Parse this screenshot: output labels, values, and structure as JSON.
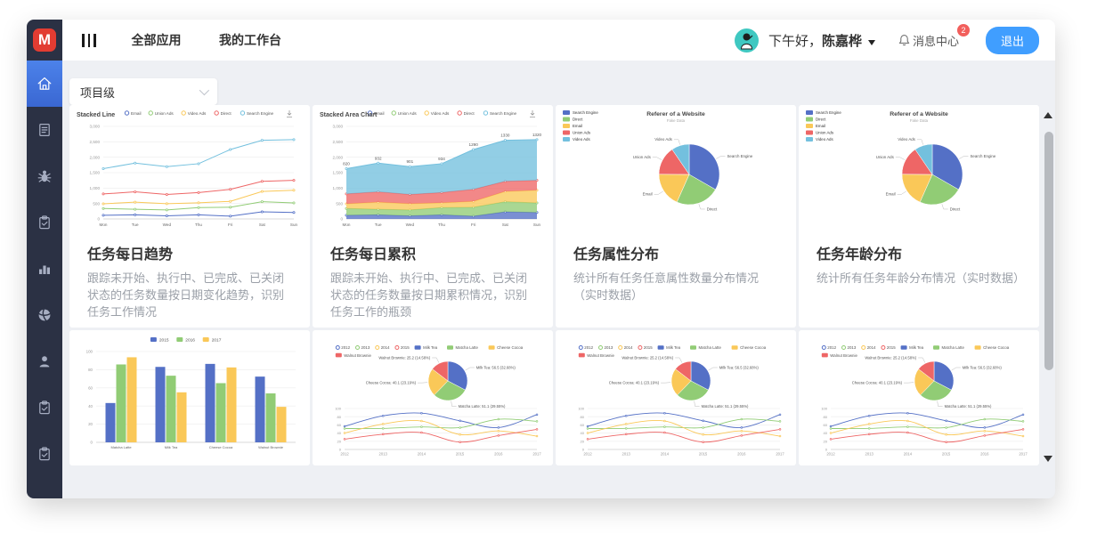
{
  "header": {
    "logo_letter": "M",
    "nav": [
      {
        "label": "全部应用"
      },
      {
        "label": "我的工作台"
      }
    ],
    "greeting_prefix": "下午好，",
    "user_name": "陈嘉桦",
    "message_center_label": "消息中心",
    "message_badge_count": "2",
    "logout_label": "退出"
  },
  "sidebar": {
    "items": [
      {
        "icon": "home-icon",
        "active": true
      },
      {
        "icon": "document-icon",
        "active": false
      },
      {
        "icon": "bug-icon",
        "active": false
      },
      {
        "icon": "clipboard-check-icon",
        "active": false
      },
      {
        "icon": "bar-chart-icon",
        "active": false
      },
      {
        "icon": "globe-icon",
        "active": false
      },
      {
        "icon": "user-icon",
        "active": false
      },
      {
        "icon": "clipboard-check-icon",
        "active": false
      },
      {
        "icon": "clipboard-check-icon",
        "active": false
      }
    ]
  },
  "filter": {
    "value": "项目级"
  },
  "colors": {
    "accent_blue": "#409eff",
    "sidebar_bg": "#2b3144",
    "active_item_blue": "#3f6fd6",
    "logo_red": "#e23c32",
    "avatar_teal": "#3fc8c1",
    "badge_red": "#f25f5c",
    "palette": [
      "#5470c6",
      "#91cc75",
      "#fac858",
      "#ee6666",
      "#73c0de"
    ]
  },
  "cards": [
    {
      "title": "任务每日趋势",
      "desc": "跟踪未开始、执行中、已完成、已关闭状态的任务数量按日期变化趋势，识别任务工作情况",
      "chart": {
        "type": "stacked-line",
        "title": "Stacked Line",
        "categories": [
          "Mon",
          "Tue",
          "Wed",
          "Thu",
          "Fri",
          "Sat",
          "Sun"
        ],
        "ymax": 3000,
        "ystep": 500,
        "series": [
          {
            "name": "Email",
            "color": "#5470c6",
            "values": [
              120,
              132,
              101,
              134,
              90,
              230,
              210
            ]
          },
          {
            "name": "Union Ads",
            "color": "#91cc75",
            "values": [
              220,
              182,
              191,
              234,
              290,
              330,
              310
            ]
          },
          {
            "name": "Video Ads",
            "color": "#fac858",
            "values": [
              150,
              232,
              201,
              154,
              190,
              330,
              410
            ]
          },
          {
            "name": "Direct",
            "color": "#ee6666",
            "values": [
              320,
              332,
              301,
              334,
              390,
              330,
              320
            ]
          },
          {
            "name": "Search Engine",
            "color": "#73c0de",
            "values": [
              820,
              932,
              901,
              934,
              1290,
              1330,
              1320
            ]
          }
        ]
      }
    },
    {
      "title": "任务每日累积",
      "desc": "跟踪未开始、执行中、已完成、已关闭状态的任务数量按日期累积情况，识别任务工作的瓶颈",
      "chart": {
        "type": "stacked-area",
        "title": "Stacked Area Chart",
        "categories": [
          "Mon",
          "Tue",
          "Wed",
          "Thu",
          "Fri",
          "Sat",
          "Sun"
        ],
        "ymax": 3000,
        "ystep": 500,
        "series": [
          {
            "name": "Email",
            "color": "#5470c6",
            "values": [
              120,
              132,
              101,
              134,
              90,
              230,
              210
            ]
          },
          {
            "name": "Union Ads",
            "color": "#91cc75",
            "values": [
              220,
              182,
              191,
              234,
              290,
              330,
              310
            ]
          },
          {
            "name": "Video Ads",
            "color": "#fac858",
            "values": [
              150,
              232,
              201,
              154,
              190,
              330,
              410
            ]
          },
          {
            "name": "Direct",
            "color": "#ee6666",
            "values": [
              320,
              332,
              301,
              334,
              390,
              330,
              320
            ]
          },
          {
            "name": "Search Engine",
            "color": "#73c0de",
            "values": [
              820,
              932,
              901,
              934,
              1290,
              1330,
              1320
            ]
          }
        ]
      }
    },
    {
      "title": "任务属性分布",
      "desc": "统计所有任务任意属性数量分布情况（实时数据）",
      "chart": {
        "type": "pie",
        "title": "Referer of a Website",
        "subtitle": "Fake Data",
        "slices": [
          {
            "name": "Search Engine",
            "color": "#5470c6",
            "value": 1048
          },
          {
            "name": "Direct",
            "color": "#91cc75",
            "value": 735
          },
          {
            "name": "Email",
            "color": "#fac858",
            "value": 580
          },
          {
            "name": "Union Ads",
            "color": "#ee6666",
            "value": 484
          },
          {
            "name": "Video Ads",
            "color": "#73c0de",
            "value": 300
          }
        ]
      }
    },
    {
      "title": "任务年龄分布",
      "desc": "统计所有任务年龄分布情况（实时数据）",
      "chart": {
        "ref": 2
      }
    },
    {
      "chart": {
        "type": "bar",
        "categories": [
          "Matcha Latte",
          "Milk Tea",
          "Cheese Cocoa",
          "Walnut Brownie"
        ],
        "ymax": 100,
        "ystep": 20,
        "series": [
          {
            "name": "2015",
            "color": "#5470c6",
            "values": [
              43.3,
              83.1,
              86.4,
              72.4
            ]
          },
          {
            "name": "2016",
            "color": "#91cc75",
            "values": [
              85.8,
              73.4,
              65.2,
              53.9
            ]
          },
          {
            "name": "2017",
            "color": "#fac858",
            "values": [
              93.7,
              55.1,
              82.5,
              39.1
            ]
          }
        ]
      }
    },
    {
      "chart": {
        "type": "pie-line",
        "legend_lines": [
          {
            "name": "2012",
            "color": "#5470c6"
          },
          {
            "name": "2013",
            "color": "#91cc75"
          },
          {
            "name": "2014",
            "color": "#fac858"
          },
          {
            "name": "2015",
            "color": "#ee6666"
          }
        ],
        "pie": [
          {
            "name": "Milk Tea",
            "color": "#5470c6",
            "value": 56.5,
            "label": "Milk Tea: 56.5 (32.68%)"
          },
          {
            "name": "Matcha Latte",
            "color": "#91cc75",
            "value": 51.1,
            "label": "Matcha Latte: 51.1 (29.55%)"
          },
          {
            "name": "Cheese Cocoa",
            "color": "#fac858",
            "value": 40.1,
            "label": "Cheese Cocoa: 40.1 (23.19%)"
          },
          {
            "name": "Walnut Brownie",
            "color": "#ee6666",
            "value": 25.2,
            "label": "Walnut Brownie: 25.2 (14.58%)"
          }
        ],
        "x": [
          "2012",
          "2013",
          "2014",
          "2015",
          "2016",
          "2017"
        ],
        "ymax": 100,
        "ystep": 20,
        "lines": [
          {
            "name": "Milk Tea",
            "color": "#5470c6",
            "values": [
              56.5,
              82.1,
              88.7,
              70.1,
              53.4,
              85.1
            ]
          },
          {
            "name": "Matcha Latte",
            "color": "#91cc75",
            "values": [
              51.1,
              51.4,
              55.1,
              53.3,
              73.8,
              68.7
            ]
          },
          {
            "name": "Cheese Cocoa",
            "color": "#fac858",
            "values": [
              40.1,
              62.2,
              69.5,
              36.4,
              45.2,
              32.5
            ]
          },
          {
            "name": "Walnut Brownie",
            "color": "#ee6666",
            "values": [
              25.2,
              37.1,
              41.2,
              18,
              33.9,
              49.1
            ]
          }
        ]
      }
    },
    {
      "chart": {
        "ref": 5
      }
    },
    {
      "chart": {
        "ref": 5
      }
    }
  ]
}
